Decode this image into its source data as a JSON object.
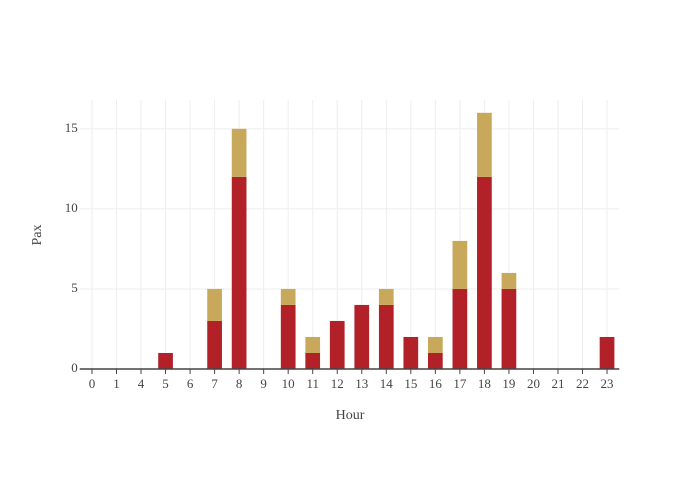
{
  "chart_data": {
    "type": "stacked_bar",
    "x_label": "Hour",
    "y_label": "Pax",
    "categories": [
      "0",
      "1",
      "4",
      "5",
      "6",
      "7",
      "8",
      "9",
      "10",
      "11",
      "12",
      "13",
      "14",
      "15",
      "16",
      "17",
      "18",
      "19",
      "20",
      "21",
      "22",
      "23"
    ],
    "series": [
      {
        "color": "#b22028",
        "values": [
          0,
          0,
          0,
          1,
          0,
          3,
          12,
          0,
          4,
          1,
          3,
          4,
          4,
          2,
          1,
          5,
          12,
          5,
          0,
          0,
          0,
          2
        ]
      },
      {
        "color": "#c8a95c",
        "values": [
          0,
          0,
          0,
          0,
          0,
          2,
          3,
          0,
          1,
          1,
          0,
          0,
          1,
          0,
          1,
          3,
          4,
          1,
          0,
          0,
          0,
          0
        ]
      }
    ],
    "ylim": [
      0,
      16.8
    ],
    "yticks": [
      0,
      5,
      10,
      15
    ],
    "grid": true
  }
}
